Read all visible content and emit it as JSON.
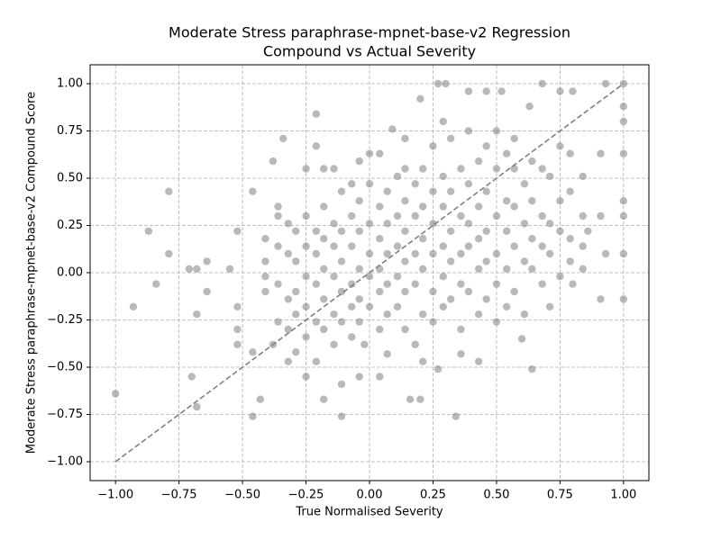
{
  "chart_data": {
    "type": "scatter",
    "title": [
      "Moderate Stress paraphrase-mpnet-base-v2 Regression",
      "Compound vs Actual Severity"
    ],
    "x_label": "True Normalised Severity",
    "y_label": "Moderate Stress paraphrase-mpnet-base-v2 Compound Score",
    "color": "#808080",
    "opacity": 0.55,
    "grid": true,
    "xlim": [
      -1.1,
      1.1
    ],
    "ylim": [
      -1.1,
      1.1
    ],
    "xticks": [
      {
        "value": -1,
        "label": "−1.00"
      },
      {
        "value": -0.75,
        "label": "−0.75"
      },
      {
        "value": -0.5,
        "label": "−0.50"
      },
      {
        "value": -0.25,
        "label": "−0.25"
      },
      {
        "value": 0,
        "label": "0.00"
      },
      {
        "value": 0.25,
        "label": "0.25"
      },
      {
        "value": 0.5,
        "label": "0.50"
      },
      {
        "value": 0.75,
        "label": "0.75"
      },
      {
        "value": 1,
        "label": "1.00"
      }
    ],
    "yticks": [
      {
        "value": -1,
        "label": "−1.00"
      },
      {
        "value": -0.75,
        "label": "−0.75"
      },
      {
        "value": -0.5,
        "label": "−0.50"
      },
      {
        "value": -0.25,
        "label": "−0.25"
      },
      {
        "value": 0,
        "label": "0.00"
      },
      {
        "value": 0.25,
        "label": "0.25"
      },
      {
        "value": 0.5,
        "label": "0.50"
      },
      {
        "value": 0.75,
        "label": "0.75"
      },
      {
        "value": 1,
        "label": "1.00"
      }
    ],
    "reference_line": {
      "color": "#808080",
      "x": [
        -1,
        1
      ],
      "values": [
        -1,
        1
      ]
    },
    "x": [
      -1.0,
      -0.93,
      -0.87,
      -0.84,
      -0.79,
      -0.79,
      -0.71,
      -0.7,
      -0.68,
      -0.68,
      -0.68,
      -0.64,
      -0.64,
      -0.55,
      -0.52,
      -0.52,
      -0.52,
      -0.52,
      -0.46,
      -0.46,
      -0.46,
      -0.43,
      -0.38,
      -0.38,
      -0.34,
      -0.21,
      -0.21,
      -0.18,
      -0.11,
      0.04,
      0.09,
      0.14,
      0.2,
      0.27,
      0.3,
      0.39,
      0.46,
      0.52,
      0.63,
      0.68,
      0.75,
      0.8,
      0.93,
      1.0,
      1.0,
      1.0,
      1.0,
      1.0,
      1.0,
      1.0,
      1.0,
      0.93,
      0.91,
      0.91,
      0.86,
      0.84,
      0.8,
      0.91,
      0.64,
      0.6,
      0.2,
      0.16,
      0.34,
      0.27,
      -0.25,
      -0.04,
      -0.02,
      -0.41,
      -0.41,
      -0.41,
      -0.41,
      -0.36,
      -0.36,
      -0.36,
      -0.36,
      -0.36,
      -0.32,
      -0.32,
      -0.32,
      -0.32,
      -0.32,
      -0.29,
      -0.29,
      -0.29,
      -0.29,
      -0.29,
      -0.25,
      -0.25,
      -0.25,
      -0.25,
      -0.25,
      -0.25,
      -0.21,
      -0.21,
      -0.21,
      -0.21,
      -0.21,
      -0.18,
      -0.18,
      -0.18,
      -0.18,
      -0.18,
      -0.18,
      -0.14,
      -0.14,
      -0.14,
      -0.14,
      -0.14,
      -0.14,
      -0.11,
      -0.11,
      -0.11,
      -0.11,
      -0.11,
      -0.11,
      -0.07,
      -0.07,
      -0.07,
      -0.07,
      -0.07,
      -0.07,
      -0.04,
      -0.04,
      -0.04,
      -0.04,
      -0.04,
      -0.04,
      0.0,
      0.0,
      0.0,
      0.0,
      0.0,
      0.0,
      0.04,
      0.04,
      0.04,
      0.04,
      0.04,
      0.04,
      0.07,
      0.07,
      0.07,
      0.07,
      0.07,
      0.07,
      0.11,
      0.11,
      0.11,
      0.11,
      0.11,
      0.14,
      0.14,
      0.14,
      0.14,
      0.14,
      0.14,
      0.18,
      0.18,
      0.18,
      0.18,
      0.18,
      0.21,
      0.21,
      0.21,
      0.21,
      0.21,
      0.21,
      0.25,
      0.25,
      0.25,
      0.25,
      0.25,
      0.25,
      0.29,
      0.29,
      0.29,
      0.29,
      0.29,
      0.29,
      0.32,
      0.32,
      0.32,
      0.32,
      0.32,
      0.36,
      0.36,
      0.36,
      0.36,
      0.36,
      0.36,
      0.39,
      0.39,
      0.39,
      0.39,
      0.39,
      0.43,
      0.43,
      0.43,
      0.43,
      0.43,
      0.43,
      0.46,
      0.46,
      0.46,
      0.46,
      0.46,
      0.5,
      0.5,
      0.5,
      0.5,
      0.5,
      0.5,
      0.54,
      0.54,
      0.54,
      0.54,
      0.54,
      0.57,
      0.57,
      0.57,
      0.57,
      0.57,
      0.61,
      0.61,
      0.61,
      0.61,
      0.64,
      0.64,
      0.64,
      0.64,
      0.68,
      0.68,
      0.68,
      0.68,
      0.71,
      0.71,
      0.71,
      0.71,
      0.75,
      0.75,
      0.75,
      0.75,
      0.79,
      0.79,
      0.79,
      0.79,
      0.84,
      0.84,
      0.84
    ],
    "values": [
      -0.64,
      -0.18,
      0.22,
      -0.06,
      0.43,
      0.1,
      0.02,
      -0.55,
      0.02,
      -0.22,
      -0.71,
      0.06,
      -0.1,
      0.02,
      0.22,
      -0.18,
      -0.3,
      -0.38,
      0.43,
      -0.42,
      -0.76,
      -0.67,
      -0.38,
      0.59,
      0.71,
      0.84,
      0.67,
      -0.67,
      -0.76,
      -0.55,
      0.76,
      0.71,
      0.92,
      1.0,
      1.0,
      0.96,
      0.96,
      0.96,
      0.88,
      1.0,
      0.96,
      0.96,
      1.0,
      1.0,
      0.88,
      0.8,
      0.63,
      0.38,
      0.3,
      0.1,
      -0.14,
      0.1,
      0.3,
      0.63,
      0.22,
      0.02,
      -0.06,
      -0.14,
      -0.51,
      -0.35,
      -0.67,
      -0.67,
      -0.76,
      -0.51,
      -0.55,
      -0.55,
      -0.38,
      0.06,
      -0.02,
      -0.1,
      0.18,
      0.3,
      0.14,
      -0.06,
      -0.26,
      0.35,
      0.26,
      0.1,
      -0.14,
      -0.3,
      -0.47,
      0.22,
      0.06,
      -0.1,
      -0.22,
      -0.42,
      0.3,
      0.14,
      -0.02,
      -0.18,
      -0.34,
      0.55,
      0.22,
      0.1,
      -0.06,
      -0.26,
      -0.47,
      0.35,
      0.18,
      0.02,
      -0.14,
      -0.3,
      0.55,
      0.26,
      0.14,
      -0.02,
      -0.22,
      -0.38,
      0.55,
      0.43,
      0.22,
      0.06,
      -0.1,
      -0.26,
      -0.59,
      0.3,
      0.14,
      -0.06,
      -0.18,
      -0.34,
      0.47,
      0.38,
      0.22,
      0.02,
      -0.14,
      -0.26,
      0.59,
      0.47,
      0.26,
      0.1,
      -0.02,
      -0.18,
      0.63,
      0.35,
      0.18,
      0.02,
      -0.1,
      -0.3,
      0.63,
      0.43,
      0.26,
      0.1,
      -0.06,
      -0.22,
      -0.43,
      0.51,
      0.3,
      0.14,
      -0.02,
      -0.18,
      0.38,
      0.22,
      0.06,
      -0.1,
      -0.3,
      0.55,
      0.47,
      0.3,
      0.1,
      -0.06,
      -0.38,
      0.55,
      0.35,
      0.18,
      0.02,
      -0.22,
      -0.47,
      0.43,
      0.26,
      0.1,
      -0.1,
      -0.26,
      0.67,
      0.51,
      0.35,
      0.14,
      -0.02,
      -0.18,
      0.8,
      0.43,
      0.22,
      0.06,
      -0.14,
      0.71,
      0.55,
      0.3,
      0.1,
      -0.06,
      -0.3,
      -0.43,
      0.47,
      0.26,
      0.14,
      -0.1,
      0.75,
      0.59,
      0.35,
      0.18,
      0.02,
      -0.22,
      -0.47,
      0.67,
      0.43,
      0.22,
      0.06,
      -0.14,
      0.55,
      0.3,
      0.1,
      -0.06,
      -0.26,
      0.75,
      0.63,
      0.38,
      0.22,
      0.02,
      -0.18,
      0.55,
      0.35,
      0.14,
      -0.1,
      0.71,
      0.47,
      0.26,
      0.06,
      -0.22,
      0.59,
      0.38,
      0.18,
      0.02,
      0.55,
      0.3,
      0.14,
      -0.06,
      0.51,
      0.26,
      0.1,
      -0.18,
      0.67,
      0.38,
      0.22,
      -0.02,
      0.63,
      0.43,
      0.18,
      0.06,
      0.51,
      0.3,
      0.14
    ]
  }
}
